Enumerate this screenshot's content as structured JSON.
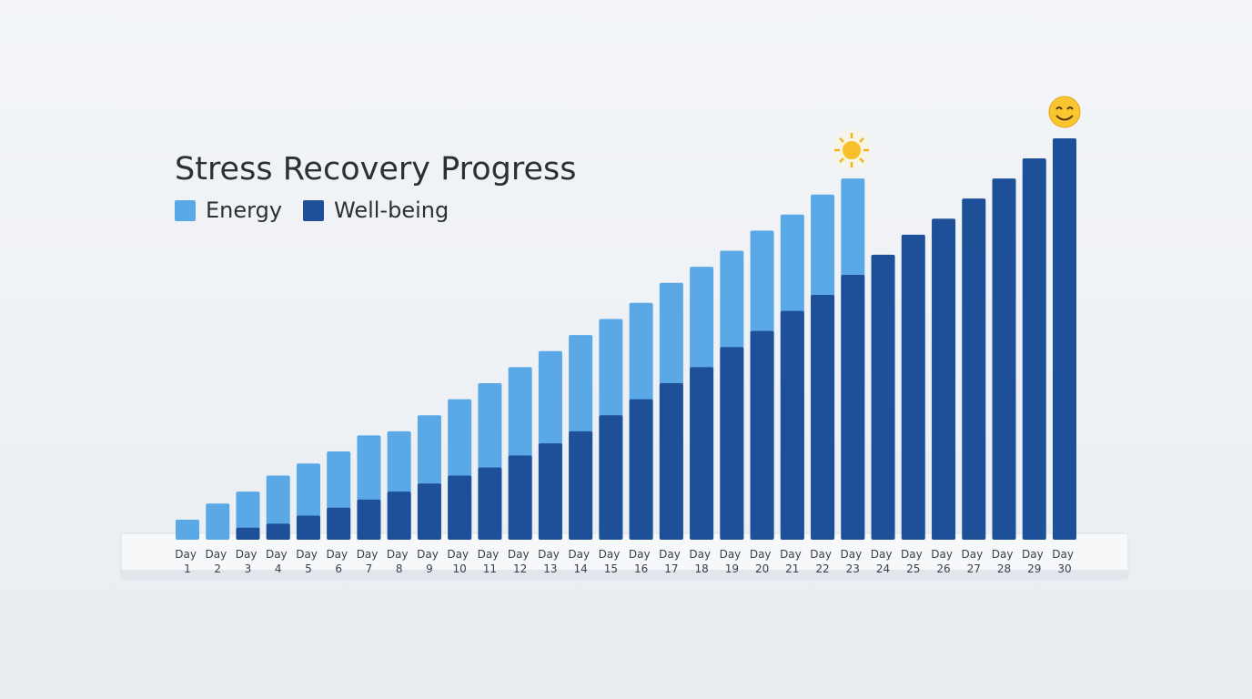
{
  "chart_data": {
    "type": "bar",
    "title": "Stress Recovery Progress",
    "categories": [
      "Day 1",
      "Day 2",
      "Day 3",
      "Day 4",
      "Day 5",
      "Day 6",
      "Day 7",
      "Day 8",
      "Day 9",
      "Day 10",
      "Day 11",
      "Day 12",
      "Day 13",
      "Day 14",
      "Day 15",
      "Day 16",
      "Day 17",
      "Day 18",
      "Day 19",
      "Day 20",
      "Day 21",
      "Day 22",
      "Day 23",
      "Day 24",
      "Day 25",
      "Day 26",
      "Day 27",
      "Day 28",
      "Day 29",
      "Day 30"
    ],
    "series": [
      {
        "name": "Energy",
        "color": "#5aa8e6",
        "values": [
          5,
          9,
          12,
          16,
          19,
          22,
          26,
          27,
          31,
          35,
          39,
          43,
          47,
          51,
          55,
          59,
          64,
          68,
          72,
          77,
          81,
          86,
          90,
          null,
          null,
          null,
          null,
          null,
          null,
          null
        ]
      },
      {
        "name": "Well-being",
        "color": "#1e4f99",
        "values": [
          null,
          null,
          3,
          4,
          6,
          8,
          10,
          12,
          14,
          16,
          18,
          21,
          24,
          27,
          31,
          35,
          39,
          43,
          48,
          52,
          57,
          61,
          66,
          71,
          76,
          80,
          85,
          90,
          95,
          100
        ]
      }
    ],
    "ylim": [
      0,
      100
    ]
  }
}
